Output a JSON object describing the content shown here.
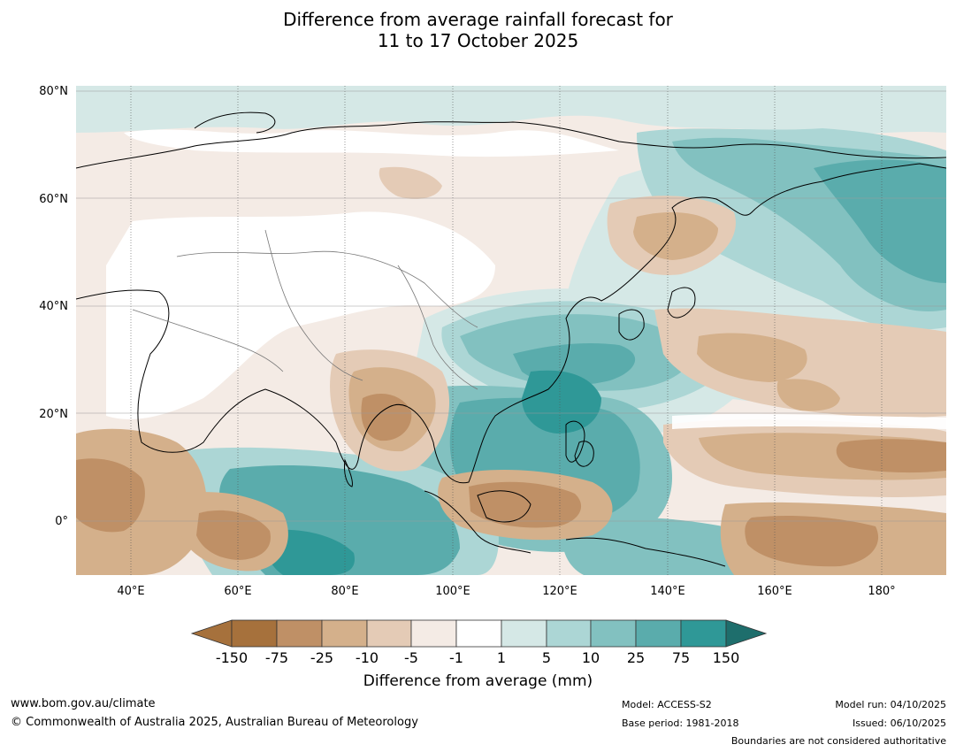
{
  "title_line1": "Difference from average rainfall forecast for",
  "title_line2": "11 to 17 October 2025",
  "map": {
    "lat_labels": [
      "80°N",
      "60°N",
      "40°N",
      "20°N",
      "0°"
    ],
    "lon_labels": [
      "40°E",
      "60°E",
      "80°E",
      "100°E",
      "120°E",
      "140°E",
      "160°E",
      "180°"
    ],
    "colors": {
      "dry_150": "#a6713c",
      "dry_75": "#bf9066",
      "dry_25": "#d4b08b",
      "dry_10": "#e4cbb6",
      "dry_5": "#f4ebe5",
      "neutral": "#ffffff",
      "wet_1": "#d5e8e6",
      "wet_5": "#acd6d5",
      "wet_10": "#82c1c0",
      "wet_25": "#5aacac",
      "wet_75": "#2f9897",
      "wet_150": "#1e6e6c"
    }
  },
  "colorbar": {
    "ticks": [
      "-150",
      "-75",
      "-25",
      "-10",
      "-5",
      "-1",
      "1",
      "5",
      "10",
      "25",
      "75",
      "150"
    ],
    "label": "Difference from average (mm)"
  },
  "footer": {
    "url": "www.bom.gov.au/climate",
    "copyright": "© Commonwealth of Australia 2025, Australian Bureau of Meteorology",
    "model": "Model: ACCESS-S2",
    "base_period": "Base period: 1981-2018",
    "model_run": "Model run: 04/10/2025",
    "issued": "Issued: 06/10/2025",
    "boundaries": "Boundaries are not considered authoritative"
  }
}
